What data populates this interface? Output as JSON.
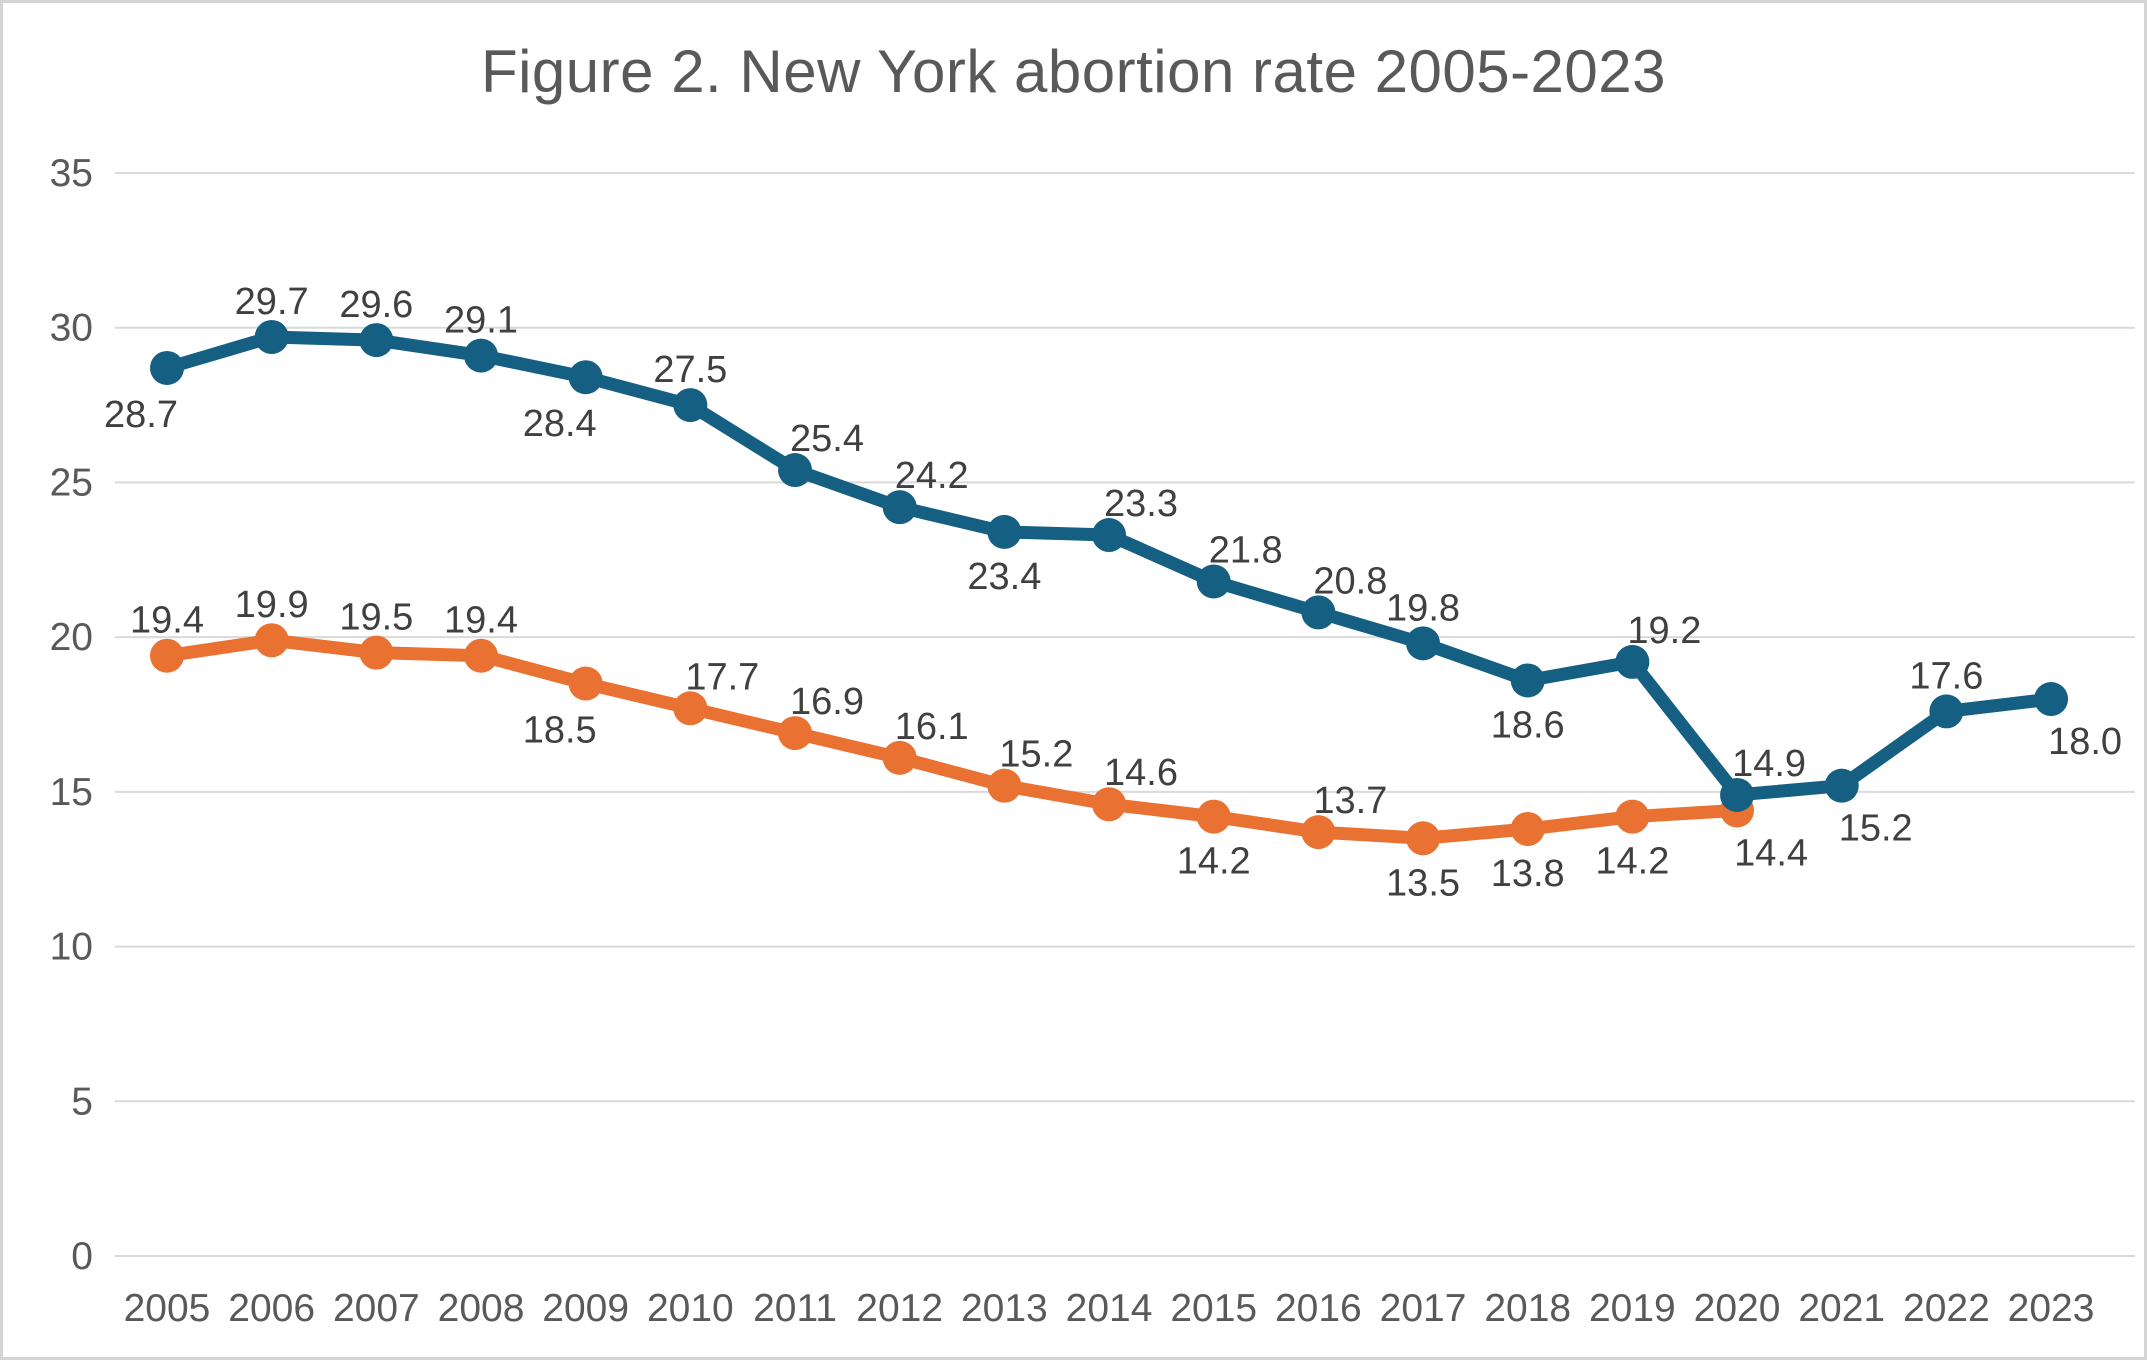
{
  "chart_data": {
    "type": "line",
    "title": "Figure 2. New York abortion rate 2005-2023",
    "xlabel": "",
    "ylabel": "",
    "x_categories": [
      "2005",
      "2006",
      "2007",
      "2008",
      "2009",
      "2010",
      "2011",
      "2012",
      "2013",
      "2014",
      "2015",
      "2016",
      "2017",
      "2018",
      "2019",
      "2020",
      "2021",
      "2022",
      "2023"
    ],
    "y_ticks": [
      0,
      5,
      10,
      15,
      20,
      25,
      30,
      35
    ],
    "ylim": [
      0,
      35
    ],
    "grid": true,
    "legend_position": "none",
    "series": [
      {
        "color": "#E97132",
        "marker": "circle",
        "values": [
          19.4,
          19.9,
          19.5,
          19.4,
          18.5,
          17.7,
          16.9,
          16.1,
          15.2,
          14.6,
          14.2,
          13.7,
          13.5,
          13.8,
          14.2,
          14.4
        ],
        "data_labels": [
          "19.4",
          "19.9",
          "19.5",
          "19.4",
          "18.5",
          "17.7",
          "16.9",
          "16.1",
          "15.2",
          "14.6",
          "14.2",
          "13.7",
          "13.5",
          "13.8",
          "14.2",
          "14.4"
        ],
        "label_positions": [
          "above",
          "above",
          "above",
          "above",
          "below-left",
          "above-right",
          "above-right",
          "above-right",
          "above-right",
          "above-right",
          "below",
          "above-right",
          "below",
          "below",
          "below",
          "below-right"
        ]
      },
      {
        "color": "#156082",
        "marker": "circle",
        "values": [
          28.7,
          29.7,
          29.6,
          29.1,
          28.4,
          27.5,
          25.4,
          24.2,
          23.4,
          23.3,
          21.8,
          20.8,
          19.8,
          18.6,
          19.2,
          14.9,
          15.2,
          17.6,
          18.0
        ],
        "data_labels": [
          "28.7",
          "29.7",
          "29.6",
          "29.1",
          "28.4",
          "27.5",
          "25.4",
          "24.2",
          "23.4",
          "23.3",
          "21.8",
          "20.8",
          "19.8",
          "18.6",
          "19.2",
          "14.9",
          "15.2",
          "17.6",
          "18.0"
        ],
        "label_positions": [
          "below-left",
          "above",
          "above",
          "above",
          "below-left",
          "above",
          "above-right",
          "above-right",
          "below",
          "above-right",
          "above-right",
          "above-right",
          "above",
          "below",
          "above-right",
          "above-right",
          "below-right",
          "above",
          "below-right"
        ]
      }
    ],
    "colors": {
      "title_text": "#595959",
      "axis_text": "#595959",
      "data_label_text": "#404040",
      "gridline": "#D9D9D9",
      "background": "#FFFFFF"
    }
  }
}
